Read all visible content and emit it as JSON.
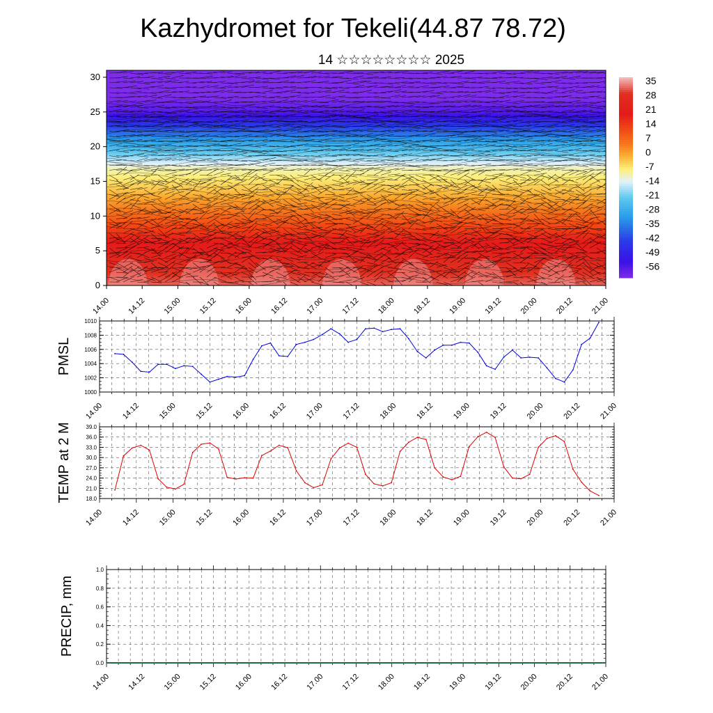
{
  "title": "Kazhydromet for Tekeli(44.87 78.72)",
  "subtitle": "14 ☆☆☆☆☆☆☆☆ 2025",
  "chart_data": [
    {
      "type": "heatmap",
      "title": "Kazhydromet for Tekeli(44.87 78.72)",
      "subtitle": "14 ☆☆☆☆☆☆☆☆ 2025",
      "x_ticks": [
        "14.00",
        "14.12",
        "15.00",
        "15.12",
        "16.00",
        "16.12",
        "17.00",
        "17.12",
        "18.00",
        "18.12",
        "19.00",
        "19.12",
        "20.00",
        "20.12",
        "21.00"
      ],
      "y_ticks": [
        0,
        5,
        10,
        15,
        20,
        25,
        30
      ],
      "ylim": [
        0,
        31
      ],
      "colorbar": {
        "labels": [
          "35",
          "28",
          "21",
          "14",
          "7",
          "0",
          "-7",
          "-14",
          "-21",
          "-28",
          "-35",
          "-42",
          "-49",
          "-56"
        ],
        "stops": [
          {
            "value": 38,
            "color": "#f4c0c0"
          },
          {
            "value": 30,
            "color": "#e03020"
          },
          {
            "value": 20,
            "color": "#e41a1a"
          },
          {
            "value": 12,
            "color": "#f24c14"
          },
          {
            "value": 5,
            "color": "#f77a1e"
          },
          {
            "value": 0,
            "color": "#fbaa30"
          },
          {
            "value": -7,
            "color": "#fdf07a"
          },
          {
            "value": -13,
            "color": "#e4f2fb"
          },
          {
            "value": -21,
            "color": "#5fc8ef"
          },
          {
            "value": -30,
            "color": "#2a9fe8"
          },
          {
            "value": -42,
            "color": "#2a3ce8"
          },
          {
            "value": -52,
            "color": "#3a10e8"
          },
          {
            "value": -60,
            "color": "#7d2ce9"
          }
        ]
      },
      "levels": [
        {
          "height": 0,
          "temp": 33
        },
        {
          "height": 3,
          "temp": 28
        },
        {
          "height": 7,
          "temp": 18
        },
        {
          "height": 11,
          "temp": 5
        },
        {
          "height": 14,
          "temp": -3
        },
        {
          "height": 17,
          "temp": -10
        },
        {
          "height": 19,
          "temp": -20
        },
        {
          "height": 21,
          "temp": -30
        },
        {
          "height": 23,
          "temp": -42
        },
        {
          "height": 25,
          "temp": -55
        },
        {
          "height": 27,
          "temp": -60
        },
        {
          "height": 31,
          "temp": -62
        }
      ]
    },
    {
      "type": "line",
      "ylabel": "PMSL",
      "ylim": [
        1000,
        1010
      ],
      "y_ticks": [
        "1000",
        "1002",
        "1004",
        "1006",
        "1008",
        "1010"
      ],
      "x_ticks": [
        "14.00",
        "14.12",
        "15.00",
        "15.12",
        "16.00",
        "16.12",
        "17.00",
        "17.12",
        "18.00",
        "18.12",
        "19.00",
        "19.12",
        "20.00",
        "20.12",
        "21.00"
      ],
      "line_color": "#0000e0",
      "values": [
        1005.4,
        1005.3,
        1004.2,
        1002.9,
        1002.8,
        1003.9,
        1003.9,
        1003.3,
        1003.7,
        1003.6,
        1002.5,
        1001.4,
        1001.8,
        1002.2,
        1002.1,
        1002.3,
        1004.6,
        1006.5,
        1006.9,
        1005.1,
        1005.0,
        1006.7,
        1007.0,
        1007.4,
        1008.1,
        1008.9,
        1008.2,
        1007.0,
        1007.4,
        1008.9,
        1009.0,
        1008.5,
        1008.8,
        1008.9,
        1007.5,
        1005.7,
        1004.8,
        1005.9,
        1006.6,
        1006.6,
        1007.0,
        1006.9,
        1005.6,
        1003.7,
        1003.2,
        1004.9,
        1005.9,
        1004.8,
        1004.9,
        1004.8,
        1003.4,
        1001.9,
        1001.4,
        1003.1,
        1006.7,
        1007.6,
        1009.8
      ]
    },
    {
      "type": "line",
      "ylabel": "TEMP at 2 M",
      "ylim": [
        18,
        39
      ],
      "y_ticks": [
        "18.0",
        "21.0",
        "24.0",
        "27.0",
        "30.0",
        "33.0",
        "36.0",
        "39.0"
      ],
      "x_ticks": [
        "14.00",
        "14.12",
        "15.00",
        "15.12",
        "16.00",
        "16.12",
        "17.00",
        "17.12",
        "18.00",
        "18.12",
        "19.00",
        "19.12",
        "20.00",
        "20.12",
        "21.00"
      ],
      "line_color": "#e00000",
      "values": [
        20.5,
        30.5,
        32.8,
        33.6,
        32.2,
        23.8,
        21.3,
        20.8,
        22.2,
        31.5,
        33.9,
        34.3,
        32.5,
        24.2,
        23.7,
        24.1,
        24.0,
        30.6,
        31.9,
        33.6,
        32.9,
        26.1,
        22.6,
        21.2,
        22.0,
        29.6,
        32.8,
        34.2,
        33.0,
        25.1,
        22.3,
        21.7,
        22.6,
        31.8,
        34.5,
        35.9,
        35.3,
        27.0,
        24.3,
        23.5,
        24.5,
        33.2,
        36.1,
        37.4,
        35.9,
        27.3,
        24.0,
        23.8,
        25.1,
        33.0,
        35.6,
        36.4,
        34.7,
        26.6,
        22.8,
        20.2,
        18.9
      ]
    },
    {
      "type": "bar",
      "ylabel": "PRECIP, mm",
      "ylim": [
        0,
        1
      ],
      "y_ticks": [
        "0.0",
        "0.2",
        "0.4",
        "0.6",
        "0.8",
        "1.0"
      ],
      "x_ticks": [
        "14.00",
        "14.12",
        "15.00",
        "15.12",
        "16.00",
        "16.12",
        "17.00",
        "17.12",
        "18.00",
        "18.12",
        "19.00",
        "19.12",
        "20.00",
        "20.12",
        "21.00"
      ],
      "values": [
        0,
        0,
        0,
        0,
        0,
        0,
        0,
        0,
        0,
        0,
        0,
        0,
        0,
        0,
        0
      ]
    }
  ]
}
